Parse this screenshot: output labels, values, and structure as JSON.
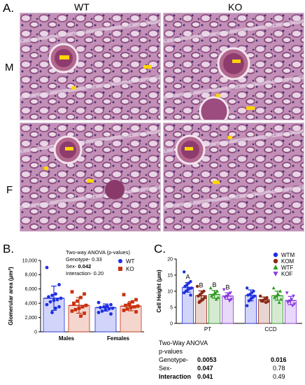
{
  "panelA": {
    "letter": "A.",
    "col_headers": [
      "WT",
      "KO"
    ],
    "row_labels": [
      "M",
      "F"
    ],
    "images": [
      {
        "alt": "WT male kidney PAS histology"
      },
      {
        "alt": "KO male kidney PAS histology"
      },
      {
        "alt": "WT female kidney PAS histology"
      },
      {
        "alt": "KO female kidney PAS histology"
      }
    ]
  },
  "panelB": {
    "letter": "B.",
    "stats_title": "Two-way ANOVA (p-values)",
    "stats": [
      {
        "label": "Genotype-",
        "value": "0.33",
        "bold": false
      },
      {
        "label": "Sex-",
        "value": "0.042",
        "bold": true
      },
      {
        "label": "Interaction-",
        "value": "0.20",
        "bold": false
      }
    ]
  },
  "panelC": {
    "letter": "C.",
    "anova_title": [
      "Two-Way ANOVA",
      "p-values"
    ],
    "anova_rows": [
      {
        "label": "Genotype-",
        "pt": "0.0053",
        "ccd": "0.016",
        "label_bold": false,
        "pt_bold": true,
        "ccd_bold": true
      },
      {
        "label": "Sex-",
        "pt": "0.047",
        "ccd": "0.78",
        "label_bold": false,
        "pt_bold": true,
        "ccd_bold": false
      },
      {
        "label": "Interaction",
        "pt": "0.041",
        "ccd": "0.49",
        "label_bold": true,
        "pt_bold": true,
        "ccd_bold": false
      }
    ]
  },
  "chart_data": [
    {
      "type": "bar",
      "title": "",
      "ylabel": "Glomerular area (μm²)",
      "xlabel": "",
      "ylim": [
        0,
        10000
      ],
      "yticks": [
        "0",
        "2,000",
        "4,000",
        "6,000",
        "8,000",
        "10,000"
      ],
      "categories": [
        "Males",
        "Females"
      ],
      "legend_position": "right",
      "series": [
        {
          "name": "WT",
          "color": "#1f2fe0",
          "marker": "circle",
          "values": [
            4700,
            3400
          ],
          "err": [
            1700,
            500
          ],
          "points": [
            [
              9000,
              6600,
              5300,
              5100,
              4900,
              4700,
              4500,
              4400,
              4200,
              3800,
              3500,
              3300,
              2700
            ],
            [
              4100,
              3800,
              3600,
              3500,
              3400,
              3300,
              3200,
              3100,
              2900,
              2700,
              2500
            ]
          ]
        },
        {
          "name": "KO",
          "color": "#c83210",
          "marker": "square",
          "values": [
            3700,
            3600
          ],
          "err": [
            1100,
            650
          ],
          "points": [
            [
              5600,
              5300,
              4800,
              4300,
              4000,
              3700,
              3500,
              3300,
              3100,
              2900,
              2600,
              2200
            ],
            [
              5200,
              4500,
              4200,
              3900,
              3700,
              3600,
              3500,
              3400,
              3200,
              3000,
              2800
            ]
          ]
        }
      ]
    },
    {
      "type": "bar",
      "title": "",
      "ylabel": "Cell Height (μm)",
      "xlabel": "",
      "ylim": [
        0,
        20
      ],
      "yticks": [
        "0",
        "5",
        "10",
        "15",
        "20"
      ],
      "categories": [
        "PT",
        "CCD"
      ],
      "legend_position": "top-right",
      "annotations": [
        "A",
        "B",
        "B",
        "B"
      ],
      "series": [
        {
          "name": "WTM",
          "color": "#1f2fe0",
          "marker": "circle",
          "values": [
            11.2,
            8.7
          ],
          "err": [
            1.5,
            1.7
          ],
          "points": [
            [
              16,
              13,
              12.5,
              12,
              11.5,
              11,
              10.8,
              10.5,
              10,
              9.5,
              8.8
            ],
            [
              11,
              10,
              9.5,
              9,
              8.8,
              8.5,
              8,
              7.5,
              7,
              5.5
            ]
          ]
        },
        {
          "name": "KOM",
          "color": "#8a2a14",
          "marker": "circle",
          "values": [
            8.6,
            7.4
          ],
          "err": [
            1.5,
            0.8
          ],
          "points": [
            [
              11.5,
              10,
              9.5,
              9,
              8.5,
              8,
              7.5,
              7,
              6.5
            ],
            [
              8.5,
              8,
              7.5,
              7.2,
              7,
              6.8,
              6.5
            ]
          ]
        },
        {
          "name": "WTF",
          "color": "#2a9a1e",
          "marker": "triangle",
          "values": [
            9.0,
            8.6
          ],
          "err": [
            1.2,
            1.4
          ],
          "points": [
            [
              11,
              10,
              9.5,
              9,
              8.5,
              8,
              7.5
            ],
            [
              11,
              10,
              9,
              8.5,
              8,
              7.5,
              6.5
            ]
          ]
        },
        {
          "name": "KOF",
          "color": "#8a3ae0",
          "marker": "triangle-down",
          "values": [
            8.5,
            7.1
          ],
          "err": [
            1.0,
            1.3
          ],
          "points": [
            [
              10.5,
              9.5,
              9,
              8.5,
              8,
              7.5,
              7
            ],
            [
              9.5,
              8.5,
              7.5,
              7,
              6.5,
              6,
              5.5
            ]
          ]
        }
      ]
    }
  ]
}
